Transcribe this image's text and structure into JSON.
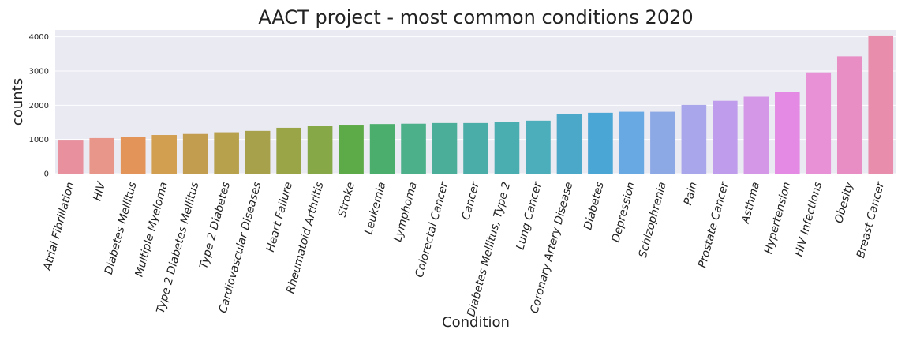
{
  "chart_data": {
    "type": "bar",
    "title": "AACT project - most common conditions 2020",
    "xlabel": "Condition",
    "ylabel": "counts",
    "ylim": [
      0,
      4200
    ],
    "yticks": [
      0,
      1000,
      2000,
      3000,
      4000
    ],
    "grid": true,
    "legend": "none",
    "categories": [
      "Atrial Fibrillation",
      "HIV",
      "Diabetes Mellitus",
      "Multiple Myeloma",
      "Type 2 Diabetes Mellitus",
      "Type 2 Diabetes",
      "Cardiovascular Diseases",
      "Heart Failure",
      "Rheumatoid Arthritis",
      "Stroke",
      "Leukemia",
      "Lymphoma",
      "Colorectal Cancer",
      "Cancer",
      "Diabetes Mellitus, Type 2",
      "Lung Cancer",
      "Coronary Artery Disease",
      "Diabetes",
      "Depression",
      "Schizophrenia",
      "Pain",
      "Prostate Cancer",
      "Asthma",
      "Hypertension",
      "HIV Infections",
      "Obesity",
      "Breast Cancer"
    ],
    "values": [
      990,
      1040,
      1080,
      1130,
      1160,
      1210,
      1250,
      1340,
      1400,
      1430,
      1450,
      1460,
      1480,
      1480,
      1500,
      1550,
      1750,
      1780,
      1810,
      1810,
      2010,
      2130,
      2250,
      2380,
      2960,
      3430,
      4040
    ],
    "colors": [
      "#e8909d",
      "#e8968a",
      "#e39459",
      "#d29e4f",
      "#c39d4f",
      "#b7a14c",
      "#a8a14b",
      "#9aa548",
      "#86a847",
      "#5daa48",
      "#4cae6c",
      "#4cb08a",
      "#4bae99",
      "#4bada7",
      "#4aadb0",
      "#4cadbb",
      "#4ca8c8",
      "#4aa6d4",
      "#68a9e4",
      "#8da9e5",
      "#a9a6ec",
      "#c09cec",
      "#d497e8",
      "#e48ae4",
      "#e991d6",
      "#e98dc5",
      "#e88dab"
    ]
  }
}
